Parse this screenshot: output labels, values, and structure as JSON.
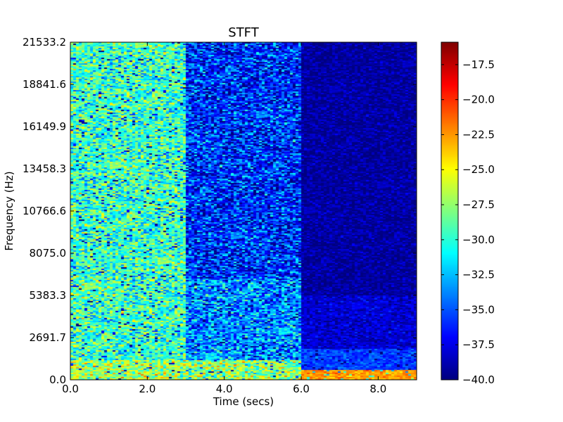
{
  "chart_data": {
    "type": "heatmap",
    "title": "STFT",
    "xlabel": "Time (secs)",
    "ylabel": "Frequency (Hz)",
    "xlim": [
      0,
      9.0
    ],
    "ylim": [
      0,
      21533.2
    ],
    "x_ticks": [
      {
        "value": 0.0,
        "label": "0.0"
      },
      {
        "value": 2.0,
        "label": "2.0"
      },
      {
        "value": 4.0,
        "label": "4.0"
      },
      {
        "value": 6.0,
        "label": "6.0"
      },
      {
        "value": 8.0,
        "label": "8.0"
      }
    ],
    "y_ticks": [
      {
        "value": 0.0,
        "label": "0.0"
      },
      {
        "value": 2691.7,
        "label": "2691.7"
      },
      {
        "value": 5383.3,
        "label": "5383.3"
      },
      {
        "value": 8075.0,
        "label": "8075.0"
      },
      {
        "value": 10766.6,
        "label": "10766.6"
      },
      {
        "value": 13458.3,
        "label": "13458.3"
      },
      {
        "value": 16149.9,
        "label": "16149.9"
      },
      {
        "value": 18841.6,
        "label": "18841.6"
      },
      {
        "value": 21533.2,
        "label": "21533.2"
      }
    ],
    "colormap": "jet",
    "colorbar": {
      "range": [
        -40.0,
        -15.9
      ],
      "ticks": [
        {
          "value": -17.5,
          "label": "−17.5"
        },
        {
          "value": -20.0,
          "label": "−20.0"
        },
        {
          "value": -22.5,
          "label": "−22.5"
        },
        {
          "value": -25.0,
          "label": "−25.0"
        },
        {
          "value": -27.5,
          "label": "−27.5"
        },
        {
          "value": -30.0,
          "label": "−30.0"
        },
        {
          "value": -32.5,
          "label": "−32.5"
        },
        {
          "value": -35.0,
          "label": "−35.0"
        },
        {
          "value": -37.5,
          "label": "−37.5"
        },
        {
          "value": -40.0,
          "label": "−40.0"
        }
      ]
    },
    "segments": [
      {
        "t_start": 0.0,
        "t_end": 3.0,
        "mean_db": -29.5,
        "spread_db": 2.5,
        "low_freq_boost": [
          {
            "f_max": 1300,
            "db": -27.0
          }
        ]
      },
      {
        "t_start": 3.0,
        "t_end": 6.0,
        "mean_db": -35.8,
        "spread_db": 2.6,
        "low_freq_boost": [
          {
            "f_max": 1300,
            "db": -27.5
          },
          {
            "f_max": 6500,
            "db": -33.5
          }
        ]
      },
      {
        "t_start": 6.0,
        "t_end": 9.0,
        "mean_db": -39.2,
        "spread_db": 1.0,
        "low_freq_boost": [
          {
            "f_max": 600,
            "db": -22.5
          },
          {
            "f_max": 2000,
            "db": -35.5
          },
          {
            "f_max": 5400,
            "db": -38.0
          }
        ]
      }
    ]
  }
}
